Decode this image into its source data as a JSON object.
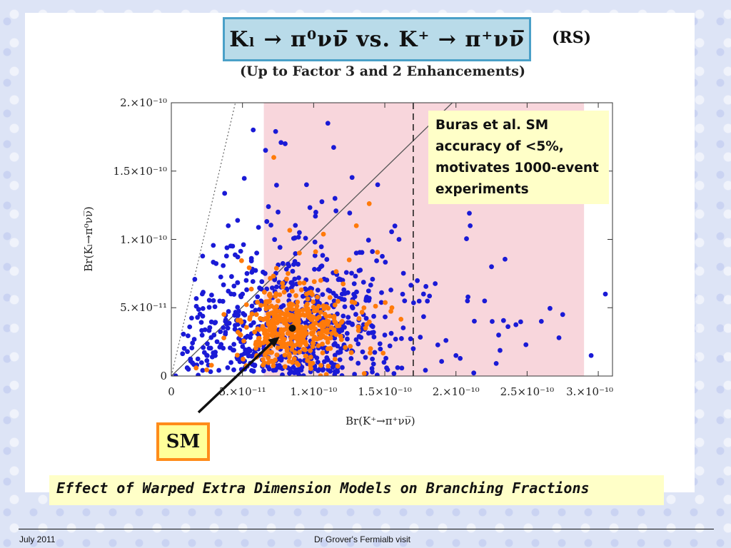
{
  "slide": {
    "title_formula": "Kₗ → π⁰νν̅  vs.  K⁺ → π⁺νν̅",
    "model_label": "(RS)",
    "subtitle": "(Up to Factor 3 and 2 Enhancements)",
    "note": "Buras et al.  SM accuracy of <5%, motivates 1000-event experiments",
    "sm_label": "SM",
    "caption": "Effect of Warped Extra Dimension Models on Branching Fractions",
    "footer_left": "July 2011",
    "footer_center": "Dr Grover's Fermialb visit"
  },
  "chart_data": {
    "type": "scatter",
    "xlabel": "Br(K⁺→π⁺νν̅)",
    "ylabel": "Br(Kₗ→π⁰νν̅)",
    "xlim": [
      0,
      3.1e-10
    ],
    "ylim": [
      0,
      2e-10
    ],
    "x_tick_labels": [
      "0",
      "5.×10⁻¹¹",
      "1.×10⁻¹⁰",
      "1.5×10⁻¹⁰",
      "2.×10⁻¹⁰",
      "2.5×10⁻¹⁰",
      "3.×10⁻¹⁰"
    ],
    "x_tick_values": [
      0,
      5e-11,
      1e-10,
      1.5e-10,
      2e-10,
      2.5e-10,
      3e-10
    ],
    "y_tick_labels": [
      "0",
      "5.×10⁻¹¹",
      "1.×10⁻¹⁰",
      "1.5×10⁻¹⁰",
      "2.×10⁻¹⁰"
    ],
    "y_tick_values": [
      0,
      5e-11,
      1e-10,
      1.5e-10,
      2e-10
    ],
    "shaded_band_x": [
      6.5e-11,
      2.9e-10
    ],
    "dashed_vertical_x": 1.7e-10,
    "sm_point": {
      "x": 8.5e-11,
      "y": 3.5e-11
    },
    "colors": {
      "blue": "#1a1ad6",
      "orange": "#ff7a0a",
      "band": "#f8d6dc",
      "sm": "#111111"
    },
    "series_blue_sample": [
      [
        1.2e-11,
        5e-12
      ],
      [
        2.5e-11,
        1.5e-11
      ],
      [
        3.8e-11,
        4e-11
      ],
      [
        5e-11,
        6e-11
      ],
      [
        6e-11,
        9e-11
      ],
      [
        7.5e-11,
        1.2e-10
      ],
      [
        9e-11,
        1.05e-10
      ],
      [
        1.05e-10,
        8e-11
      ],
      [
        1.2e-10,
        6e-11
      ],
      [
        1.35e-10,
        4.5e-11
      ],
      [
        1.5e-10,
        3e-11
      ],
      [
        1.7e-10,
        2e-11
      ],
      [
        2e-10,
        1.5e-11
      ],
      [
        2.3e-10,
        3e-11
      ],
      [
        2.6e-10,
        4e-11
      ],
      [
        2.95e-10,
        1.5e-11
      ],
      [
        3.05e-10,
        6e-11
      ],
      [
        8e-11,
        1.7e-10
      ],
      [
        1.1e-10,
        1.85e-10
      ],
      [
        1.45e-10,
        1.4e-10
      ],
      [
        1.3e-10,
        9e-11
      ],
      [
        1.6e-10,
        1e-10
      ],
      [
        2.1e-10,
        1.1e-10
      ],
      [
        2.25e-10,
        8e-11
      ],
      [
        4e-11,
        1.1e-10
      ],
      [
        3e-11,
        3e-11
      ],
      [
        6.5e-11,
        2e-11
      ],
      [
        9.5e-11,
        1.4e-10
      ],
      [
        1.15e-10,
        1.3e-10
      ],
      [
        2.75e-10,
        4.5e-11
      ]
    ],
    "series_orange_sample": [
      [
        7e-11,
        3e-11
      ],
      [
        8e-11,
        4.5e-11
      ],
      [
        9e-11,
        2.5e-11
      ],
      [
        1e-10,
        3.8e-11
      ],
      [
        7.5e-11,
        5.5e-11
      ],
      [
        9.5e-11,
        6e-11
      ],
      [
        1.1e-10,
        2e-11
      ],
      [
        6e-11,
        1.5e-11
      ],
      [
        1.2e-10,
        4e-11
      ],
      [
        8.5e-11,
        1e-11
      ],
      [
        1.05e-10,
        7e-11
      ],
      [
        1.3e-10,
        1.1e-10
      ],
      [
        7.2e-11,
        1.6e-10
      ],
      [
        1.55e-10,
        5e-11
      ],
      [
        9e-11,
        9e-11
      ],
      [
        1.4e-10,
        2e-11
      ],
      [
        6.8e-11,
        4e-11
      ],
      [
        1.15e-10,
        5.2e-11
      ],
      [
        8.2e-11,
        7.5e-11
      ],
      [
        1.25e-10,
        8.5e-11
      ]
    ]
  }
}
